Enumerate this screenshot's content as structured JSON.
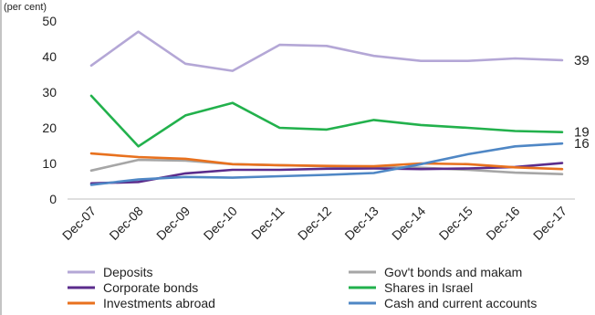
{
  "chart_data": {
    "type": "line",
    "unit_label": "(per cent)",
    "categories": [
      "Dec-07",
      "Dec-08",
      "Dec-09",
      "Dec-10",
      "Dec-11",
      "Dec-12",
      "Dec-13",
      "Dec-14",
      "Dec-15",
      "Dec-16",
      "Dec-17"
    ],
    "ylim": [
      0,
      50
    ],
    "yticks": [
      0,
      10,
      20,
      30,
      40,
      50
    ],
    "grid": false,
    "legend_position": "bottom",
    "series": [
      {
        "name": "Deposits",
        "color": "#b4a7d6",
        "values": [
          37.5,
          47,
          38,
          36,
          43.3,
          43,
          40.2,
          38.8,
          38.8,
          39.5,
          39
        ],
        "end_label": "39"
      },
      {
        "name": "Gov't bonds and makam",
        "color": "#a6a6a6",
        "values": [
          8,
          11,
          10.8,
          9.8,
          9.5,
          9.2,
          9,
          8.8,
          8.2,
          7.4,
          7
        ]
      },
      {
        "name": "Corporate bonds",
        "color": "#5b2c8c",
        "values": [
          4.4,
          4.8,
          7.2,
          8.2,
          8.2,
          8.5,
          8.6,
          8.4,
          8.6,
          9,
          10.1
        ]
      },
      {
        "name": "Shares in Israel",
        "color": "#22b14c",
        "values": [
          29,
          14.8,
          23.5,
          27,
          20,
          19.5,
          22.2,
          20.8,
          20,
          19.1,
          18.8
        ],
        "end_label": "19"
      },
      {
        "name": "Investments abroad",
        "color": "#e8711e",
        "values": [
          12.8,
          11.8,
          11.3,
          9.8,
          9.5,
          9.3,
          9.2,
          10,
          9.8,
          8.9,
          8.4
        ]
      },
      {
        "name": "Cash and current accounts",
        "color": "#4f87c5",
        "values": [
          4,
          5.5,
          6.2,
          6,
          6.4,
          6.8,
          7.3,
          9.8,
          12.6,
          14.8,
          15.6
        ],
        "end_label": "16"
      }
    ]
  }
}
